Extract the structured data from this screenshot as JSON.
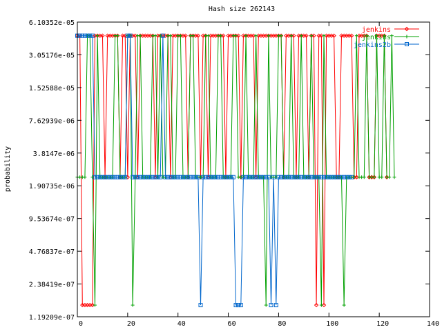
{
  "chart_data": {
    "type": "line",
    "title": "Hash size 262143",
    "xlabel": "",
    "ylabel": "probability",
    "xlim": [
      0,
      140
    ],
    "ylim": [
      1.19209e-07,
      6.10352e-05
    ],
    "y_scale": "log2",
    "x_ticks": [
      "0",
      "20",
      "40",
      "60",
      "80",
      "100",
      "120",
      "140"
    ],
    "y_ticks": [
      "6.10352e-05",
      "3.05176e-05",
      "1.52588e-05",
      "7.62939e-06",
      "3.8147e-06",
      "1.90735e-06",
      "9.53674e-07",
      "4.76837e-07",
      "2.38419e-07",
      "1.19209e-07"
    ],
    "grid": false,
    "legend_position": "top-right",
    "value_levels": {
      "high": 4.57764e-05,
      "mid": 2.28882e-06,
      "low": 1.52588e-07
    },
    "series": [
      {
        "name": "jenkins",
        "color": "#ff0000",
        "marker": "diamond",
        "levels": "HHLLLLLHHHHMHHHHHMHHMHHHMHHHHHHMHHHHHMHHHHHHMHHHHMHHMHHHHHHMHHHHHMHHHHHMHHHHHHHHHHMHHHHMHHHHMHHLHHLHHHHMMHHHHHMMHHHHMMMHHHHM"
      },
      {
        "name": "jenkins",
        "color": "#00a000",
        "marker": "plus",
        "levels": "MMMMHHMLHMMMMMMHHMMMHHLMHHMMMMHHMHMMHHMMHHMMMHHMMMMHHMMMHHMMMMHHMMMHMMMHMMMLHMMMHHMMMHMMMHMMMHMMMLHMMMMMMMLMMMMHMMMHMMMHMMHMMHM"
      },
      {
        "name": "jenkins2b",
        "color": "#0066cc",
        "marker": "square",
        "levels": "HHHHHHHMMMMMMMMMMMMMHHMMMMMMMMMMMMHMMMMMMMMMMMMMMLMMMMMMMMMMMMMLLLMMMMMMMMMMMLMLMMMMMMMMMMMMMMMMMMMMMMMMMMMMMM"
      }
    ]
  }
}
